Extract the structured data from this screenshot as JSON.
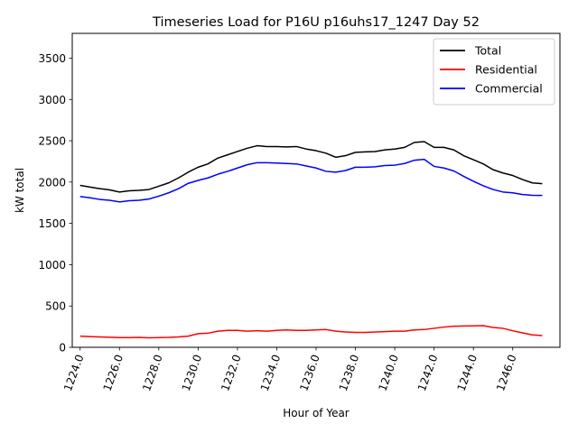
{
  "chart_data": {
    "type": "line",
    "title": "Timeseries Load for P16U p16uhs17_1247  Day 52",
    "xlabel": "Hour of Year",
    "ylabel": "kW total",
    "xlim": [
      1223.6,
      1248.4
    ],
    "ylim": [
      0,
      3800
    ],
    "xticks": [
      1224,
      1226,
      1228,
      1230,
      1232,
      1234,
      1236,
      1238,
      1240,
      1242,
      1244,
      1246
    ],
    "xtick_labels": [
      "1224.0",
      "1226.0",
      "1228.0",
      "1230.0",
      "1232.0",
      "1234.0",
      "1236.0",
      "1238.0",
      "1240.0",
      "1242.0",
      "1244.0",
      "1246.0"
    ],
    "yticks": [
      0,
      500,
      1000,
      1500,
      2000,
      2500,
      3000,
      3500
    ],
    "ytick_labels": [
      "0",
      "500",
      "1000",
      "1500",
      "2000",
      "2500",
      "3000",
      "3500"
    ],
    "legend_position": "top-right",
    "series": [
      {
        "name": "Total",
        "color": "#000000",
        "x": [
          1224,
          1224.5,
          1225,
          1225.5,
          1226,
          1226.5,
          1227,
          1227.5,
          1228,
          1228.5,
          1229,
          1229.5,
          1230,
          1230.5,
          1231,
          1231.5,
          1232,
          1232.5,
          1233,
          1233.5,
          1234,
          1234.5,
          1235,
          1235.5,
          1236,
          1236.5,
          1237,
          1237.5,
          1238,
          1238.5,
          1239,
          1239.5,
          1240,
          1240.5,
          1241,
          1241.5,
          1242,
          1242.5,
          1243,
          1243.5,
          1244,
          1244.5,
          1245,
          1245.5,
          1246,
          1246.5,
          1247,
          1247.5
        ],
        "values": [
          1960,
          1940,
          1920,
          1905,
          1880,
          1895,
          1900,
          1910,
          1950,
          1990,
          2050,
          2120,
          2180,
          2220,
          2290,
          2330,
          2370,
          2410,
          2440,
          2430,
          2430,
          2425,
          2430,
          2400,
          2380,
          2350,
          2300,
          2320,
          2360,
          2365,
          2370,
          2390,
          2400,
          2420,
          2480,
          2490,
          2420,
          2420,
          2390,
          2320,
          2270,
          2220,
          2150,
          2110,
          2080,
          2030,
          1990,
          1980
        ]
      },
      {
        "name": "Residential",
        "color": "#ff0000",
        "x": [
          1224,
          1224.5,
          1225,
          1225.5,
          1226,
          1226.5,
          1227,
          1227.5,
          1228,
          1228.5,
          1229,
          1229.5,
          1230,
          1230.5,
          1231,
          1231.5,
          1232,
          1232.5,
          1233,
          1233.5,
          1234,
          1234.5,
          1235,
          1235.5,
          1236,
          1236.5,
          1237,
          1237.5,
          1238,
          1238.5,
          1239,
          1239.5,
          1240,
          1240.5,
          1241,
          1241.5,
          1242,
          1242.5,
          1243,
          1243.5,
          1244,
          1244.5,
          1245,
          1245.5,
          1246,
          1246.5,
          1247,
          1247.5
        ],
        "values": [
          135,
          130,
          125,
          122,
          118,
          118,
          120,
          115,
          118,
          120,
          125,
          135,
          165,
          170,
          195,
          205,
          205,
          195,
          200,
          195,
          205,
          210,
          205,
          205,
          210,
          215,
          195,
          185,
          180,
          180,
          185,
          190,
          195,
          195,
          210,
          215,
          230,
          245,
          255,
          258,
          260,
          262,
          240,
          230,
          200,
          175,
          150,
          142
        ]
      },
      {
        "name": "Commercial",
        "color": "#0000ff",
        "x": [
          1224,
          1224.5,
          1225,
          1225.5,
          1226,
          1226.5,
          1227,
          1227.5,
          1228,
          1228.5,
          1229,
          1229.5,
          1230,
          1230.5,
          1231,
          1231.5,
          1232,
          1232.5,
          1233,
          1233.5,
          1234,
          1234.5,
          1235,
          1235.5,
          1236,
          1236.5,
          1237,
          1237.5,
          1238,
          1238.5,
          1239,
          1239.5,
          1240,
          1240.5,
          1241,
          1241.5,
          1242,
          1242.5,
          1243,
          1243.5,
          1244,
          1244.5,
          1245,
          1245.5,
          1246,
          1246.5,
          1247,
          1247.5
        ],
        "values": [
          1825,
          1810,
          1790,
          1780,
          1760,
          1775,
          1780,
          1795,
          1830,
          1870,
          1920,
          1985,
          2020,
          2050,
          2095,
          2130,
          2170,
          2210,
          2235,
          2235,
          2230,
          2225,
          2220,
          2195,
          2170,
          2130,
          2120,
          2140,
          2180,
          2180,
          2185,
          2200,
          2205,
          2225,
          2265,
          2275,
          2190,
          2170,
          2135,
          2070,
          2010,
          1955,
          1910,
          1880,
          1870,
          1850,
          1840,
          1838
        ]
      }
    ]
  }
}
